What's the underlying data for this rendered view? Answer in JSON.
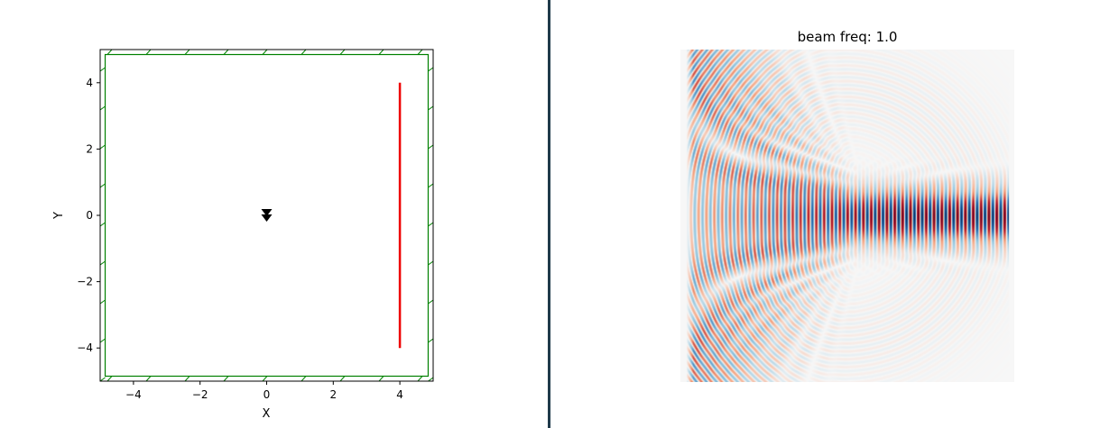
{
  "chart_data": [
    {
      "type": "scatter",
      "xlabel": "X",
      "ylabel": "Y",
      "xlim": [
        -5,
        5
      ],
      "ylim": [
        -5,
        5
      ],
      "xticks": [
        -4,
        -2,
        0,
        2,
        4
      ],
      "yticks": [
        -4,
        -2,
        0,
        2,
        4
      ],
      "grid": false,
      "pml_thickness": 0.15,
      "boundary_color": "#008000",
      "source": {
        "marker": "triangle-down",
        "x": 0,
        "y": 0,
        "color": "#000000"
      },
      "monitor": {
        "x": 4,
        "y0": -4,
        "y1": 4,
        "color": "#ee0000"
      }
    },
    {
      "type": "heatmap",
      "title": "beam freq: 1.0",
      "colormap": "RdBu_r",
      "frequency": 1.0,
      "axes_visible": false
    }
  ],
  "divider_color": "#1f3a4a"
}
